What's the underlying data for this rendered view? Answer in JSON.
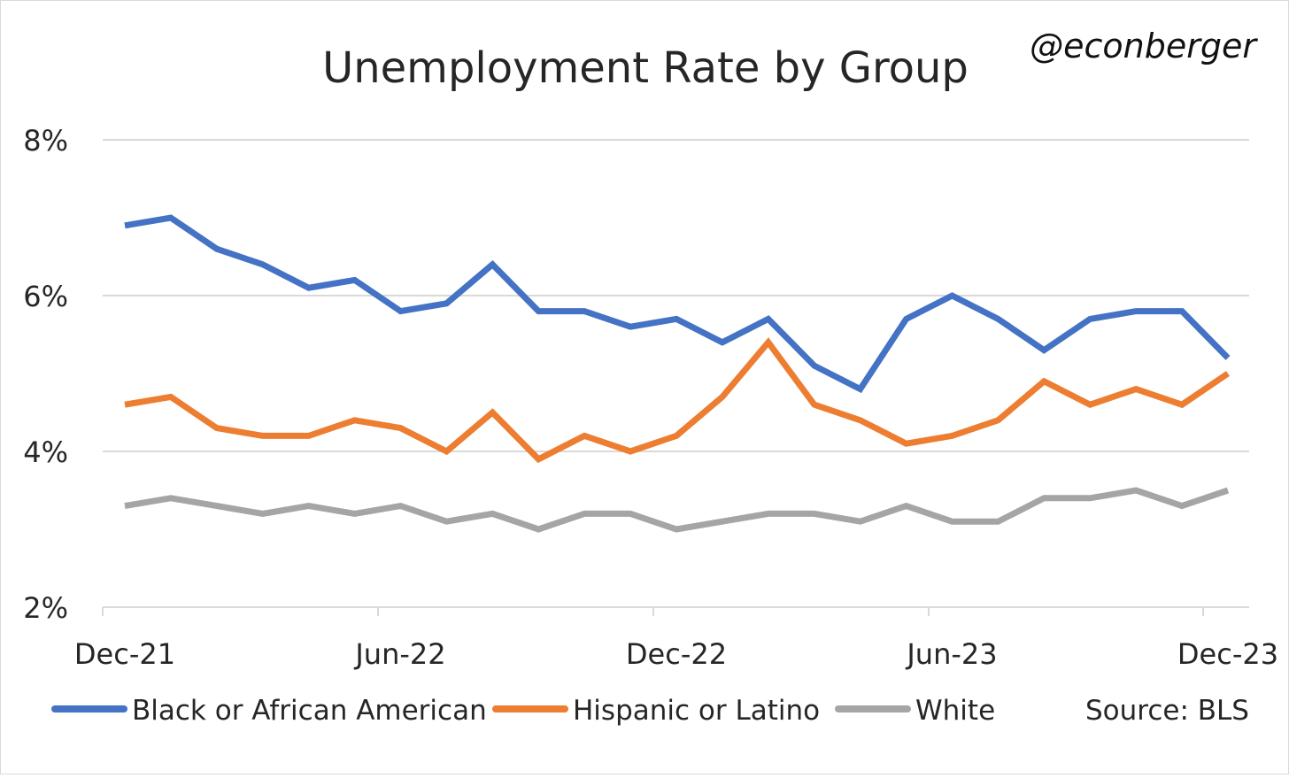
{
  "chart_data": {
    "type": "line",
    "title": "Unemployment Rate by Group",
    "handle": "@econberger",
    "source": "Source: BLS",
    "xlabel": "",
    "ylabel": "",
    "ylim": [
      2,
      8
    ],
    "yticks": [
      "2%",
      "4%",
      "6%",
      "8%"
    ],
    "ytick_values": [
      2,
      4,
      6,
      8
    ],
    "grid": true,
    "legend_position": "bottom",
    "x": [
      "Dec-21",
      "Jan-22",
      "Feb-22",
      "Mar-22",
      "Apr-22",
      "May-22",
      "Jun-22",
      "Jul-22",
      "Aug-22",
      "Sep-22",
      "Oct-22",
      "Nov-22",
      "Dec-22",
      "Jan-23",
      "Feb-23",
      "Mar-23",
      "Apr-23",
      "May-23",
      "Jun-23",
      "Jul-23",
      "Aug-23",
      "Sep-23",
      "Oct-23",
      "Nov-23",
      "Dec-23"
    ],
    "xtick_labels": [
      {
        "index": 0,
        "label": "Dec-21"
      },
      {
        "index": 6,
        "label": "Jun-22"
      },
      {
        "index": 12,
        "label": "Dec-22"
      },
      {
        "index": 18,
        "label": "Jun-23"
      },
      {
        "index": 24,
        "label": "Dec-23"
      }
    ],
    "series": [
      {
        "name": "Black or African American",
        "color": "#4472C4",
        "values": [
          6.9,
          7.0,
          6.6,
          6.4,
          6.1,
          6.2,
          5.8,
          5.9,
          6.4,
          5.8,
          5.8,
          5.6,
          5.7,
          5.4,
          5.7,
          5.1,
          4.8,
          5.7,
          6.0,
          5.7,
          5.3,
          5.7,
          5.8,
          5.8,
          5.2
        ]
      },
      {
        "name": "Hispanic or Latino",
        "color": "#ED7D31",
        "values": [
          4.6,
          4.7,
          4.3,
          4.2,
          4.2,
          4.4,
          4.3,
          4.0,
          4.5,
          3.9,
          4.2,
          4.0,
          4.2,
          4.7,
          5.4,
          4.6,
          4.4,
          4.1,
          4.2,
          4.4,
          4.9,
          4.6,
          4.8,
          4.6,
          5.0
        ]
      },
      {
        "name": "White",
        "color": "#A5A5A5",
        "values": [
          3.3,
          3.4,
          3.3,
          3.2,
          3.3,
          3.2,
          3.3,
          3.1,
          3.2,
          3.0,
          3.2,
          3.2,
          3.0,
          3.1,
          3.2,
          3.2,
          3.1,
          3.3,
          3.1,
          3.1,
          3.4,
          3.4,
          3.5,
          3.3,
          3.5
        ]
      }
    ]
  }
}
